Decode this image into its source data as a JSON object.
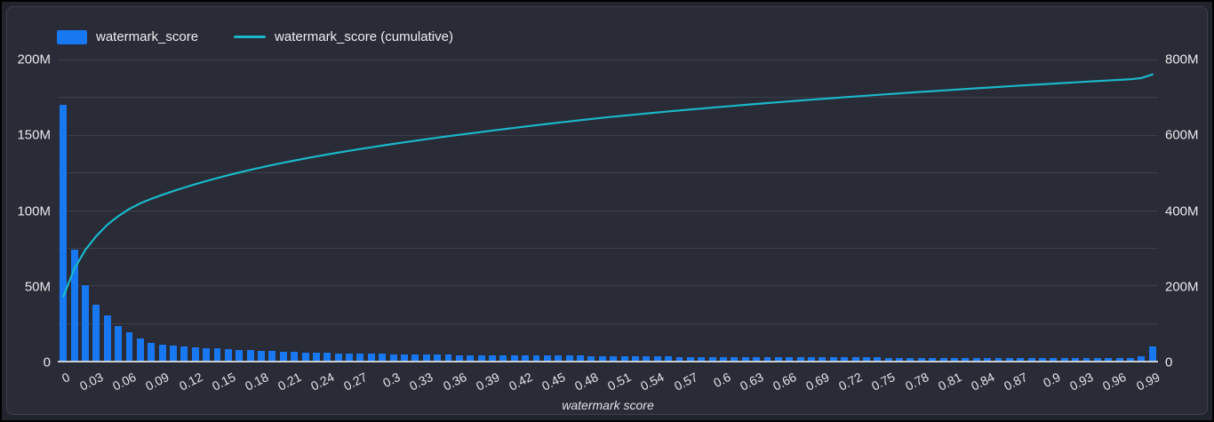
{
  "ui": {
    "panel_background": "#292b36",
    "outer_background": "#23252e",
    "grid_color": "rgba(255,255,255,0.09)",
    "axis_line_color": "#ccced2",
    "text_color": "#e9eaec"
  },
  "chart_data": {
    "type": "bar",
    "title": "",
    "xlabel": "watermark score",
    "ylabel": "",
    "bin_width": 0.01,
    "x_range": [
      0,
      1
    ],
    "grid": "horizontal",
    "legend_position": "top-left",
    "left_axis": {
      "tick_labels": [
        "0",
        "50M",
        "100M",
        "150M",
        "200M"
      ],
      "max_millions": 200
    },
    "right_axis": {
      "tick_labels": [
        "0",
        "200M",
        "400M",
        "600M",
        "800M"
      ],
      "max_millions": 800
    },
    "x_tick_labels": [
      "0",
      "0.03",
      "0.06",
      "0.09",
      "0.12",
      "0.15",
      "0.18",
      "0.21",
      "0.24",
      "0.27",
      "0.3",
      "0.33",
      "0.36",
      "0.39",
      "0.42",
      "0.45",
      "0.48",
      "0.51",
      "0.54",
      "0.57",
      "0.6",
      "0.63",
      "0.66",
      "0.69",
      "0.72",
      "0.75",
      "0.78",
      "0.81",
      "0.84",
      "0.87",
      "0.9",
      "0.93",
      "0.96",
      "0.99"
    ],
    "x_label_every_n_bins": 3,
    "series": [
      {
        "name": "watermark_score",
        "type": "bar",
        "axis": "left",
        "color": "#1778f2",
        "values_millions": [
          170,
          74,
          50,
          37,
          30,
          23,
          19,
          15,
          12,
          10.5,
          10,
          9.4,
          8.9,
          8.4,
          8,
          7.6,
          7.2,
          6.9,
          6.6,
          6.3,
          6,
          5.8,
          5.6,
          5.4,
          5.2,
          5,
          4.8,
          4.7,
          4.6,
          4.5,
          4.4,
          4.3,
          4.2,
          4.1,
          4,
          3.9,
          3.8,
          3.8,
          3.7,
          3.7,
          3.6,
          3.6,
          3.5,
          3.5,
          3.4,
          3.4,
          3.3,
          3.3,
          3.2,
          3.2,
          2.9,
          2.9,
          2.8,
          2.8,
          2.7,
          2.7,
          2.6,
          2.6,
          2.5,
          2.5,
          2.5,
          2.4,
          2.4,
          2.4,
          2.3,
          2.3,
          2.3,
          2.2,
          2.2,
          2.2,
          2.2,
          2.1,
          2.1,
          2.1,
          2.1,
          2,
          2,
          2,
          2,
          1.9,
          1.9,
          1.9,
          1.9,
          1.9,
          1.8,
          1.8,
          1.8,
          1.8,
          1.8,
          1.7,
          1.7,
          1.7,
          1.7,
          1.7,
          1.7,
          1.6,
          1.6,
          1.7,
          3.1,
          9.5
        ]
      },
      {
        "name": "watermark_score (cumulative)",
        "type": "line",
        "axis": "right",
        "color": "#1ab7c9",
        "derivation": "running_sum_of_watermark_score",
        "start_millions": 170,
        "end_millions": 760
      }
    ]
  }
}
